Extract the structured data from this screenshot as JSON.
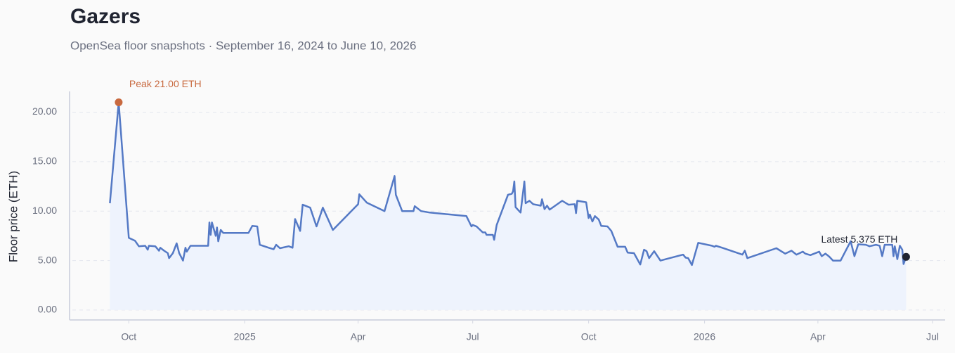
{
  "chart_data": {
    "type": "line",
    "title": "Gazers",
    "subtitle": "OpenSea floor snapshots · September 16, 2024 to June 10, 2026",
    "y_label": "Floor price (ETH)",
    "peak_label": "Peak 21.00 ETH",
    "latest_label": "Latest 5.375 ETH",
    "color": "#5479c5",
    "fill_color": "#eef3fd",
    "peak_color": "#c8693f",
    "latest_color": "#1f2330",
    "grid": true,
    "xlim": [
      "2024-08-15",
      "2026-07-11"
    ],
    "xticks": [
      {
        "value": "2024-10-01",
        "label": "Oct"
      },
      {
        "value": "2025-01-01",
        "label": "2025"
      },
      {
        "value": "2025-04-01",
        "label": "Apr"
      },
      {
        "value": "2025-07-01",
        "label": "Jul"
      },
      {
        "value": "2025-10-01",
        "label": "Oct"
      },
      {
        "value": "2026-01-01",
        "label": "2026"
      },
      {
        "value": "2026-04-01",
        "label": "Apr"
      },
      {
        "value": "2026-07-01",
        "label": "Jul"
      }
    ],
    "ylim": [
      -1.0,
      22.1
    ],
    "yticks": [
      {
        "value": 0,
        "label": "0.00"
      },
      {
        "value": 5,
        "label": "5.00"
      },
      {
        "value": 10,
        "label": "10.00"
      },
      {
        "value": 15,
        "label": "15.00"
      },
      {
        "value": 20,
        "label": "20.00"
      }
    ],
    "x": [
      "2024-09-16",
      "2024-09-23",
      "2024-10-01",
      "2024-10-06",
      "2024-10-09",
      "2024-10-14",
      "2024-10-16",
      "2024-10-17",
      "2024-10-22",
      "2024-10-25",
      "2024-10-26",
      "2024-10-29",
      "2024-11-01",
      "2024-11-02",
      "2024-11-05",
      "2024-11-08",
      "2024-11-10",
      "2024-11-13",
      "2024-11-15",
      "2024-11-16",
      "2024-11-19",
      "2024-12-03",
      "2024-12-04",
      "2024-12-05",
      "2024-12-06",
      "2024-12-09",
      "2024-12-10",
      "2024-12-11",
      "2024-12-13",
      "2024-12-15",
      "2025-01-04",
      "2025-01-07",
      "2025-01-11",
      "2025-01-13",
      "2025-01-20",
      "2025-01-24",
      "2025-01-26",
      "2025-01-29",
      "2025-02-05",
      "2025-02-08",
      "2025-02-10",
      "2025-02-12",
      "2025-02-14",
      "2025-02-16",
      "2025-02-22",
      "2025-02-27",
      "2025-03-04",
      "2025-03-12",
      "2025-03-19",
      "2025-04-01",
      "2025-04-02",
      "2025-04-08",
      "2025-04-22",
      "2025-04-30",
      "2025-05-01",
      "2025-05-06",
      "2025-05-15",
      "2025-05-16",
      "2025-05-21",
      "2025-05-28",
      "2025-06-26",
      "2025-06-30",
      "2025-07-01",
      "2025-07-04",
      "2025-07-09",
      "2025-07-11",
      "2025-07-12",
      "2025-07-17",
      "2025-07-18",
      "2025-07-20",
      "2025-07-29",
      "2025-08-01",
      "2025-08-02",
      "2025-08-03",
      "2025-08-04",
      "2025-08-08",
      "2025-08-11",
      "2025-08-12",
      "2025-08-15",
      "2025-08-18",
      "2025-08-24",
      "2025-08-25",
      "2025-08-27",
      "2025-08-29",
      "2025-08-31",
      "2025-09-10",
      "2025-09-15",
      "2025-09-20",
      "2025-09-21",
      "2025-09-22",
      "2025-09-29",
      "2025-10-01",
      "2025-10-02",
      "2025-10-04",
      "2025-10-06",
      "2025-10-09",
      "2025-10-11",
      "2025-10-16",
      "2025-10-19",
      "2025-10-24",
      "2025-10-30",
      "2025-11-01",
      "2025-11-06",
      "2025-11-11",
      "2025-11-14",
      "2025-11-16",
      "2025-11-18",
      "2025-11-22",
      "2025-11-27",
      "2025-12-15",
      "2025-12-17",
      "2025-12-19",
      "2025-12-22",
      "2025-12-27",
      "2026-01-07",
      "2026-01-09",
      "2026-01-10",
      "2026-01-15",
      "2026-01-31",
      "2026-02-02",
      "2026-02-04",
      "2026-02-27",
      "2026-03-06",
      "2026-03-11",
      "2026-03-15",
      "2026-03-20",
      "2026-03-22",
      "2026-03-26",
      "2026-04-02",
      "2026-04-04",
      "2026-04-07",
      "2026-04-10",
      "2026-04-13",
      "2026-04-19",
      "2026-04-27",
      "2026-04-30",
      "2026-05-03",
      "2026-05-09",
      "2026-05-12",
      "2026-05-17",
      "2026-05-20",
      "2026-05-22",
      "2026-05-24",
      "2026-05-30",
      "2026-05-31",
      "2026-06-01",
      "2026-06-03",
      "2026-06-05",
      "2026-06-07",
      "2026-06-08",
      "2026-06-10"
    ],
    "values": [
      10.8,
      21.0,
      7.3,
      7.0,
      6.45,
      6.5,
      6.1,
      6.5,
      6.45,
      6.0,
      6.3,
      6.0,
      5.75,
      5.25,
      5.75,
      6.75,
      5.75,
      5.0,
      6.3,
      5.9,
      6.5,
      6.5,
      8.85,
      7.6,
      8.85,
      7.5,
      8.35,
      6.95,
      8.1,
      7.8,
      7.8,
      8.5,
      8.45,
      6.6,
      6.3,
      6.15,
      6.6,
      6.25,
      6.45,
      6.3,
      9.2,
      8.6,
      8.0,
      10.65,
      10.35,
      8.45,
      10.35,
      8.1,
      9.0,
      10.7,
      11.7,
      10.85,
      10.0,
      13.55,
      11.65,
      10.0,
      10.0,
      10.5,
      10.0,
      9.85,
      9.5,
      8.45,
      8.6,
      8.45,
      7.85,
      7.85,
      7.6,
      7.6,
      7.1,
      8.6,
      11.65,
      11.75,
      12.0,
      13.0,
      10.4,
      9.85,
      13.0,
      10.8,
      11.05,
      10.7,
      10.55,
      11.2,
      10.2,
      10.55,
      10.15,
      11.05,
      10.65,
      10.7,
      9.8,
      11.05,
      10.9,
      9.3,
      9.65,
      8.95,
      9.5,
      9.15,
      8.5,
      8.45,
      8.0,
      6.4,
      6.4,
      5.8,
      5.75,
      4.6,
      6.1,
      5.95,
      5.25,
      5.95,
      5.0,
      5.6,
      5.3,
      5.25,
      4.55,
      6.8,
      6.5,
      6.4,
      6.5,
      6.3,
      5.6,
      6.0,
      5.25,
      6.25,
      5.7,
      6.0,
      5.6,
      5.9,
      5.7,
      5.55,
      5.9,
      5.45,
      5.7,
      5.4,
      5.0,
      5.0,
      6.95,
      5.45,
      6.65,
      6.6,
      6.45,
      6.6,
      6.5,
      5.45,
      6.6,
      6.6,
      5.45,
      6.45,
      5.15,
      6.5,
      6.1,
      4.65,
      5.375
    ]
  }
}
